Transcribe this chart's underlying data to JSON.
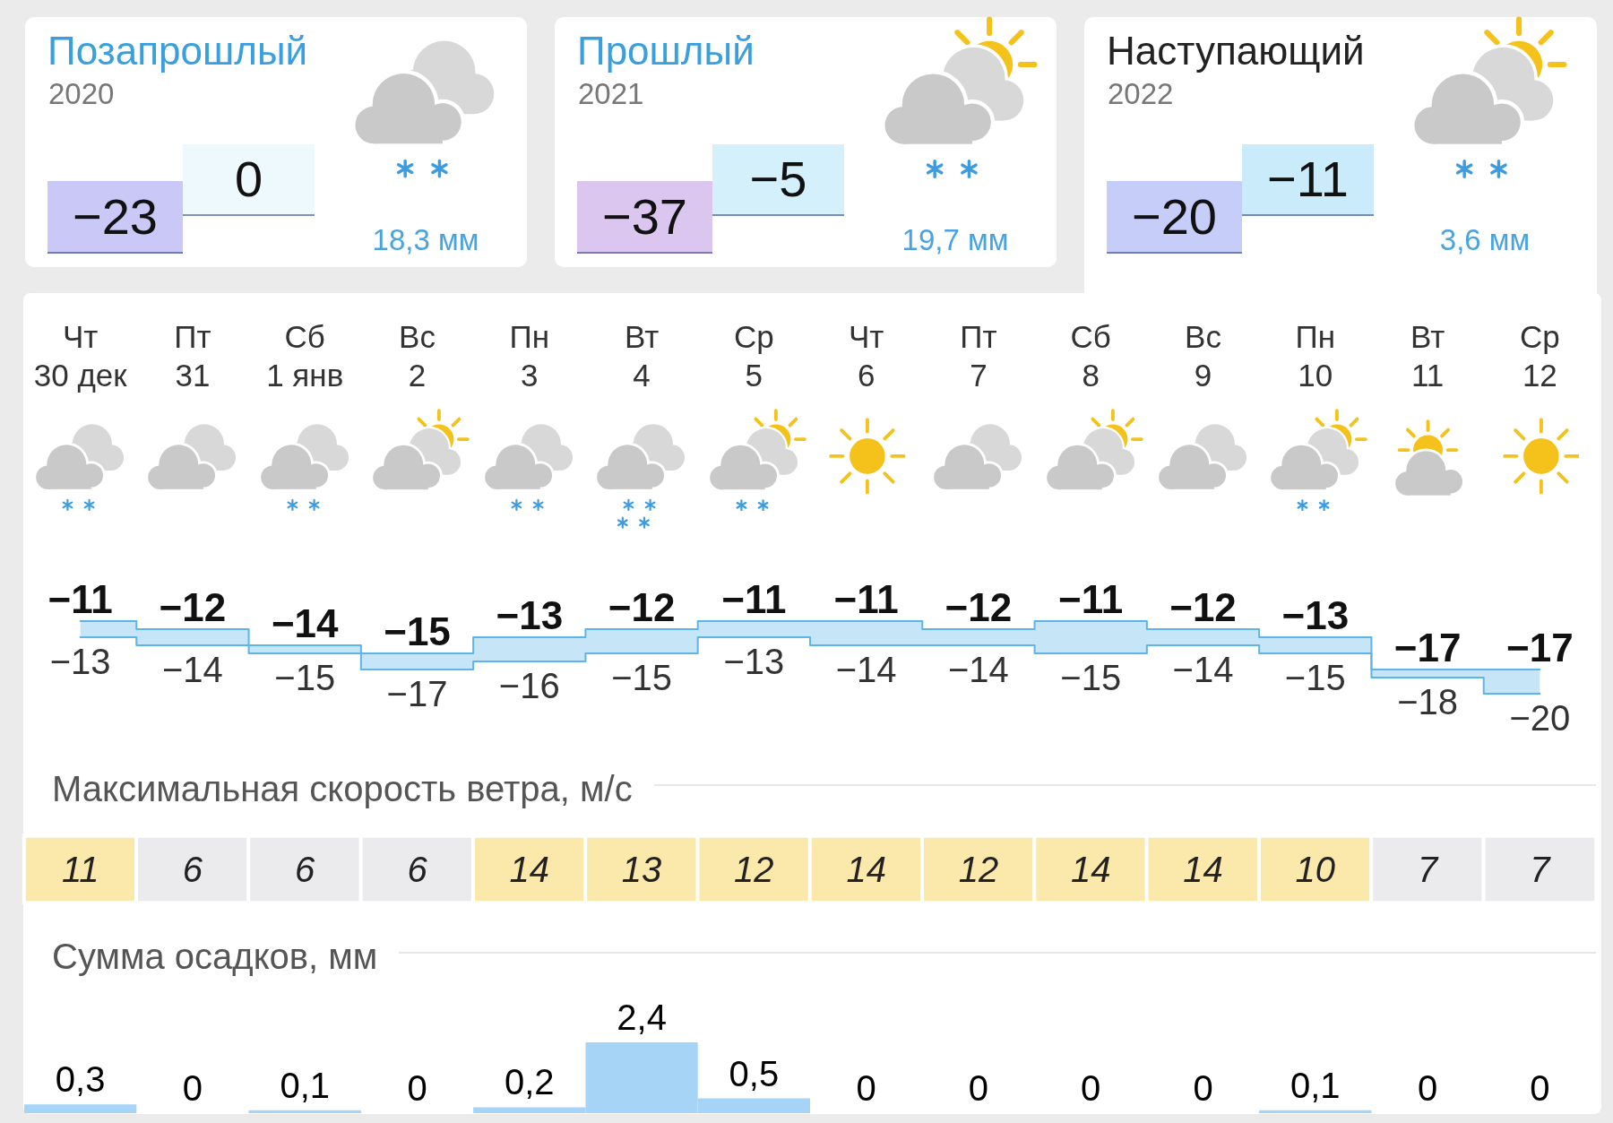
{
  "chart_data": [
    {
      "type": "other",
      "title": "Позапрошлый",
      "subtitle": "2020",
      "annotations": [
        "−23",
        "0",
        "18,3 мм"
      ],
      "colors": [
        "#cac8f7",
        "#eef9fd"
      ]
    },
    {
      "type": "other",
      "title": "Прошлый",
      "subtitle": "2021",
      "annotations": [
        "−37",
        "−5",
        "19,7 мм"
      ],
      "colors": [
        "#dbc6f0",
        "#d4f1fb"
      ]
    },
    {
      "type": "other",
      "title": "Наступающий",
      "subtitle": "2022",
      "annotations": [
        "−20",
        "−11",
        "3,6 мм"
      ],
      "colors": [
        "#c6cdf8",
        "#c9ebfa"
      ]
    },
    {
      "type": "step",
      "categories": [
        "Чт\n30 дек",
        "Пт\n31",
        "Сб\n1 янв",
        "Вс\n2",
        "Пн\n3",
        "Вт\n4",
        "Ср\n5",
        "Чт\n6",
        "Пт\n7",
        "Сб\n8",
        "Вс\n9",
        "Пн\n10",
        "Вт\n11",
        "Ср\n12"
      ],
      "series": [
        {
          "color": "#5db4e9",
          "values": [
            -11,
            -12,
            -14,
            -15,
            -13,
            -12,
            -11,
            -11,
            -12,
            -11,
            -12,
            -13,
            -17,
            -17
          ],
          "lower": [
            -13,
            -14,
            -15,
            -17,
            -16,
            -15,
            -13,
            -14,
            -14,
            -15,
            -14,
            -15,
            -18,
            -20
          ],
          "upper": [
            -11,
            -12,
            -14,
            -15,
            -13,
            -12,
            -11,
            -11,
            -12,
            -11,
            -12,
            -13,
            -17,
            -17
          ]
        },
        {
          "color": "#5db4e9",
          "values": [
            -13,
            -14,
            -15,
            -17,
            -16,
            -15,
            -13,
            -14,
            -14,
            -15,
            -14,
            -15,
            -18,
            -20
          ]
        }
      ],
      "data_labels": true,
      "tick_labels": "x"
    },
    {
      "type": "heatmap",
      "title": "Максимальная скорость ветра, м/с",
      "categories": [
        null,
        null,
        null,
        null,
        null,
        null,
        null,
        null,
        null,
        null,
        null,
        null,
        null,
        null
      ],
      "y_categories": [
        null
      ],
      "cells": [
        [
          11,
          6,
          6,
          6,
          14,
          13,
          12,
          14,
          12,
          14,
          14,
          10,
          7,
          7
        ]
      ],
      "colors": [
        "#fbe8ab",
        "#ebebee",
        "#ebebee",
        "#ebebee",
        "#fbe8ab",
        "#fbe8ab",
        "#fbe8ab",
        "#fbe8ab",
        "#fbe8ab",
        "#fbe8ab",
        "#fbe8ab",
        "#fbe8ab",
        "#ebebee",
        "#ebebee"
      ],
      "data_labels": true
    },
    {
      "type": "bar",
      "title": "Сумма осадков, мм",
      "categories": [
        null,
        null,
        null,
        null,
        null,
        null,
        null,
        null,
        null,
        null,
        null,
        null,
        null,
        null
      ],
      "values": [
        0.3,
        0,
        0.1,
        0,
        0.2,
        2.4,
        0.5,
        0,
        0,
        0,
        0,
        0.1,
        0,
        0
      ],
      "value_labels": [
        "0,3",
        "0",
        "0,1",
        "0",
        "0,2",
        "2,4",
        "0,5",
        "0",
        "0",
        "0",
        "0",
        "0,1",
        "0",
        "0"
      ],
      "color": "#a6d4f6",
      "tick_labels": false
    }
  ]
}
